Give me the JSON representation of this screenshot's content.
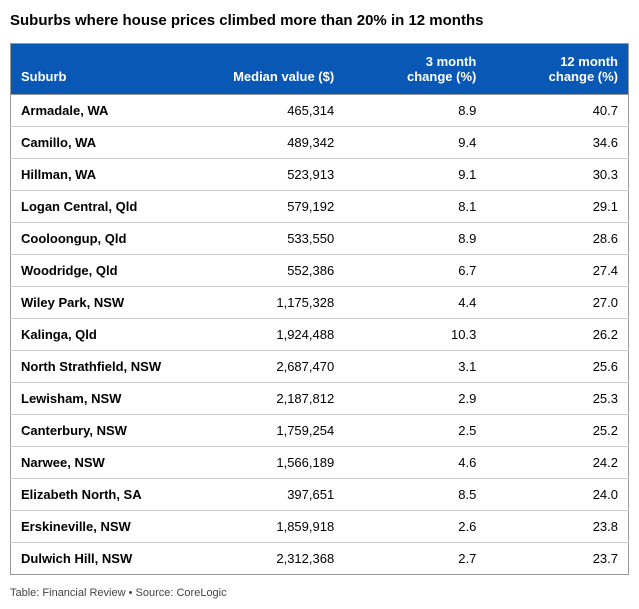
{
  "title": "Suburbs where house prices climbed more than 20% in 12 months",
  "table": {
    "columns": [
      {
        "label": "Suburb",
        "align": "left"
      },
      {
        "label": "Median value ($)",
        "align": "right"
      },
      {
        "label": "3 month change (%)",
        "align": "right",
        "multiline": true
      },
      {
        "label": "12 month change (%)",
        "align": "right",
        "multiline": true
      }
    ],
    "rows": [
      {
        "suburb": "Armadale, WA",
        "median": "465,314",
        "m3": "8.9",
        "m12": "40.7"
      },
      {
        "suburb": "Camillo, WA",
        "median": "489,342",
        "m3": "9.4",
        "m12": "34.6"
      },
      {
        "suburb": "Hillman, WA",
        "median": "523,913",
        "m3": "9.1",
        "m12": "30.3"
      },
      {
        "suburb": "Logan Central, Qld",
        "median": "579,192",
        "m3": "8.1",
        "m12": "29.1"
      },
      {
        "suburb": "Cooloongup, Qld",
        "median": "533,550",
        "m3": "8.9",
        "m12": "28.6"
      },
      {
        "suburb": "Woodridge, Qld",
        "median": "552,386",
        "m3": "6.7",
        "m12": "27.4"
      },
      {
        "suburb": "Wiley Park, NSW",
        "median": "1,175,328",
        "m3": "4.4",
        "m12": "27.0"
      },
      {
        "suburb": "Kalinga, Qld",
        "median": "1,924,488",
        "m3": "10.3",
        "m12": "26.2"
      },
      {
        "suburb": "North Strathfield, NSW",
        "median": "2,687,470",
        "m3": "3.1",
        "m12": "25.6"
      },
      {
        "suburb": "Lewisham, NSW",
        "median": "2,187,812",
        "m3": "2.9",
        "m12": "25.3"
      },
      {
        "suburb": "Canterbury, NSW",
        "median": "1,759,254",
        "m3": "2.5",
        "m12": "25.2"
      },
      {
        "suburb": "Narwee, NSW",
        "median": "1,566,189",
        "m3": "4.6",
        "m12": "24.2"
      },
      {
        "suburb": "Elizabeth North, SA",
        "median": "397,651",
        "m3": "8.5",
        "m12": "24.0"
      },
      {
        "suburb": "Erskineville, NSW",
        "median": "1,859,918",
        "m3": "2.6",
        "m12": "23.8"
      },
      {
        "suburb": "Dulwich Hill, NSW",
        "median": "2,312,368",
        "m3": "2.7",
        "m12": "23.7"
      }
    ]
  },
  "footer": "Table: Financial Review • Source: CoreLogic",
  "colors": {
    "header_bg": "#0958b5",
    "header_text": "#ffffff",
    "body_text": "#000000",
    "border": "#999999",
    "row_border": "#cccccc",
    "footer_text": "#444444",
    "background": "#ffffff"
  }
}
